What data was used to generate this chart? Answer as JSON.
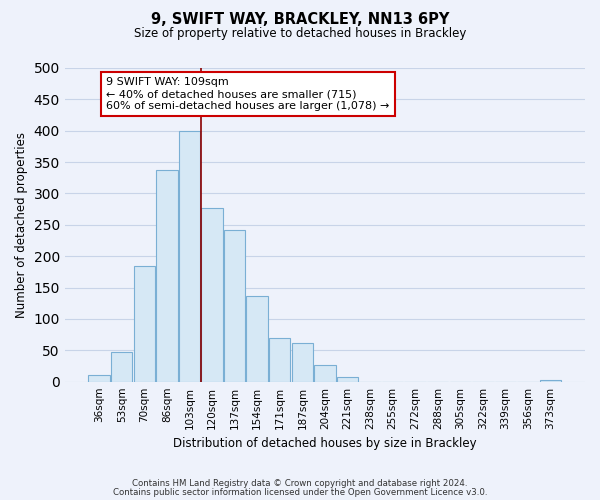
{
  "title1": "9, SWIFT WAY, BRACKLEY, NN13 6PY",
  "title2": "Size of property relative to detached houses in Brackley",
  "xlabel": "Distribution of detached houses by size in Brackley",
  "ylabel": "Number of detached properties",
  "bar_labels": [
    "36sqm",
    "53sqm",
    "70sqm",
    "86sqm",
    "103sqm",
    "120sqm",
    "137sqm",
    "154sqm",
    "171sqm",
    "187sqm",
    "204sqm",
    "221sqm",
    "238sqm",
    "255sqm",
    "272sqm",
    "288sqm",
    "305sqm",
    "322sqm",
    "339sqm",
    "356sqm",
    "373sqm"
  ],
  "bar_values": [
    10,
    47,
    185,
    338,
    400,
    277,
    242,
    137,
    70,
    62,
    26,
    8,
    0,
    0,
    0,
    0,
    0,
    0,
    0,
    0,
    3
  ],
  "bar_color": "#d6e8f5",
  "bar_edge_color": "#7aafd4",
  "vline_index": 4.5,
  "vline_color": "#8b0000",
  "ylim": [
    0,
    500
  ],
  "yticks": [
    0,
    50,
    100,
    150,
    200,
    250,
    300,
    350,
    400,
    450,
    500
  ],
  "annotation_title": "9 SWIFT WAY: 109sqm",
  "annotation_line1": "← 40% of detached houses are smaller (715)",
  "annotation_line2": "60% of semi-detached houses are larger (1,078) →",
  "annotation_box_color": "#ffffff",
  "annotation_box_edge": "#cc0000",
  "footnote1": "Contains HM Land Registry data © Crown copyright and database right 2024.",
  "footnote2": "Contains public sector information licensed under the Open Government Licence v3.0.",
  "bg_color": "#eef2fb",
  "grid_color": "#c8d4e8"
}
